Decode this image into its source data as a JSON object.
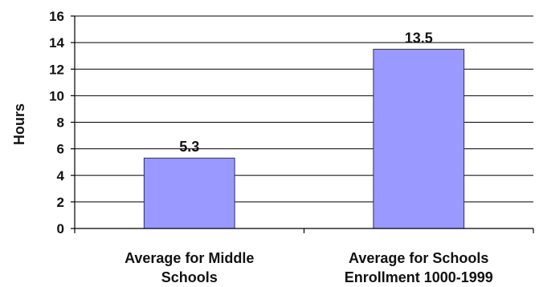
{
  "chart_data": {
    "type": "bar",
    "categories": [
      [
        "Average for Middle",
        "Schools"
      ],
      [
        "Average for Schools",
        "Enrollment 1000-1999"
      ]
    ],
    "values": [
      5.3,
      13.5
    ],
    "data_labels": [
      "5.3",
      "13.5"
    ],
    "ylabel": "Hours",
    "xlabel": "",
    "title": "",
    "ylim": [
      0,
      16
    ],
    "yticks": [
      0,
      2,
      4,
      6,
      8,
      10,
      12,
      14,
      16
    ],
    "grid": true,
    "legend": "none",
    "bar_color": "#9999ff"
  }
}
